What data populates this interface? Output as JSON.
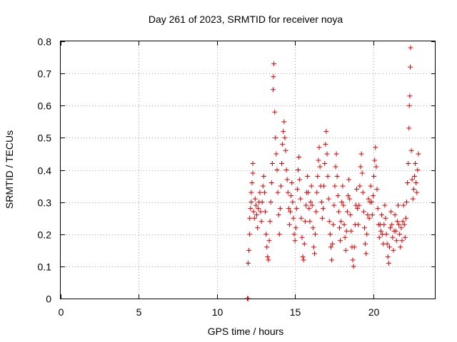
{
  "chart_data": {
    "type": "scatter",
    "title": "Day 261 of 2023, SRMTID for receiver noya",
    "xlabel": "GPS time / hours",
    "ylabel": "SRMTID / TECUs",
    "xlim": [
      0,
      24
    ],
    "ylim": [
      0,
      0.8
    ],
    "xticks": [
      0,
      5,
      10,
      15,
      20
    ],
    "yticks": [
      0,
      0.1,
      0.2,
      0.3,
      0.4,
      0.5,
      0.6,
      0.7,
      0.8
    ],
    "xtick_labels": [
      "0",
      "5",
      "10",
      "15",
      "20"
    ],
    "ytick_labels": [
      "0",
      "0.1",
      "0.2",
      "0.3",
      "0.4",
      "0.5",
      "0.6",
      "0.7",
      "0.8"
    ],
    "grid": true,
    "marker": "+",
    "color": "#e00000",
    "series": [
      {
        "name": "SRMTID",
        "points": [
          [
            11.95,
            0.0
          ],
          [
            12.0,
            0.0
          ],
          [
            12.0,
            0.11
          ],
          [
            12.05,
            0.15
          ],
          [
            12.1,
            0.2
          ],
          [
            12.1,
            0.25
          ],
          [
            12.15,
            0.28
          ],
          [
            12.2,
            0.3
          ],
          [
            12.2,
            0.33
          ],
          [
            12.25,
            0.36
          ],
          [
            12.3,
            0.39
          ],
          [
            12.3,
            0.42
          ],
          [
            12.35,
            0.27
          ],
          [
            12.4,
            0.25
          ],
          [
            12.45,
            0.31
          ],
          [
            12.5,
            0.29
          ],
          [
            12.55,
            0.26
          ],
          [
            12.6,
            0.22
          ],
          [
            12.65,
            0.28
          ],
          [
            12.7,
            0.3
          ],
          [
            12.75,
            0.33
          ],
          [
            12.8,
            0.27
          ],
          [
            12.85,
            0.24
          ],
          [
            12.9,
            0.3
          ],
          [
            12.95,
            0.35
          ],
          [
            13.0,
            0.38
          ],
          [
            13.05,
            0.33
          ],
          [
            13.1,
            0.27
          ],
          [
            13.15,
            0.2
          ],
          [
            13.2,
            0.16
          ],
          [
            13.25,
            0.13
          ],
          [
            13.3,
            0.12
          ],
          [
            13.35,
            0.18
          ],
          [
            13.4,
            0.24
          ],
          [
            13.45,
            0.3
          ],
          [
            13.5,
            0.36
          ],
          [
            13.55,
            0.42
          ],
          [
            13.6,
            0.65
          ],
          [
            13.62,
            0.69
          ],
          [
            13.65,
            0.73
          ],
          [
            13.7,
            0.58
          ],
          [
            13.75,
            0.5
          ],
          [
            13.8,
            0.45
          ],
          [
            13.85,
            0.4
          ],
          [
            13.9,
            0.33
          ],
          [
            13.95,
            0.26
          ],
          [
            14.0,
            0.2
          ],
          [
            14.05,
            0.28
          ],
          [
            14.1,
            0.35
          ],
          [
            14.15,
            0.42
          ],
          [
            14.2,
            0.48
          ],
          [
            14.25,
            0.52
          ],
          [
            14.3,
            0.55
          ],
          [
            14.35,
            0.5
          ],
          [
            14.4,
            0.46
          ],
          [
            14.45,
            0.4
          ],
          [
            14.5,
            0.37
          ],
          [
            14.55,
            0.33
          ],
          [
            14.6,
            0.28
          ],
          [
            14.65,
            0.23
          ],
          [
            14.7,
            0.27
          ],
          [
            14.75,
            0.32
          ],
          [
            14.8,
            0.36
          ],
          [
            14.85,
            0.3
          ],
          [
            14.9,
            0.25
          ],
          [
            14.95,
            0.2
          ],
          [
            15.0,
            0.18
          ],
          [
            15.05,
            0.22
          ],
          [
            15.1,
            0.28
          ],
          [
            15.15,
            0.34
          ],
          [
            15.2,
            0.4
          ],
          [
            15.25,
            0.44
          ],
          [
            15.3,
            0.37
          ],
          [
            15.35,
            0.31
          ],
          [
            15.4,
            0.25
          ],
          [
            15.45,
            0.19
          ],
          [
            15.5,
            0.13
          ],
          [
            15.55,
            0.12
          ],
          [
            15.6,
            0.17
          ],
          [
            15.65,
            0.24
          ],
          [
            15.7,
            0.29
          ],
          [
            15.75,
            0.33
          ],
          [
            15.8,
            0.38
          ],
          [
            15.85,
            0.33
          ],
          [
            15.9,
            0.28
          ],
          [
            15.95,
            0.24
          ],
          [
            16.0,
            0.3
          ],
          [
            16.05,
            0.35
          ],
          [
            16.1,
            0.29
          ],
          [
            16.15,
            0.22
          ],
          [
            16.2,
            0.16
          ],
          [
            16.25,
            0.14
          ],
          [
            16.3,
            0.2
          ],
          [
            16.35,
            0.27
          ],
          [
            16.4,
            0.33
          ],
          [
            16.45,
            0.38
          ],
          [
            16.5,
            0.43
          ],
          [
            16.55,
            0.47
          ],
          [
            16.6,
            0.41
          ],
          [
            16.65,
            0.35
          ],
          [
            16.7,
            0.3
          ],
          [
            16.75,
            0.25
          ],
          [
            16.8,
            0.28
          ],
          [
            16.85,
            0.35
          ],
          [
            16.9,
            0.42
          ],
          [
            16.95,
            0.48
          ],
          [
            17.0,
            0.52
          ],
          [
            17.05,
            0.45
          ],
          [
            17.1,
            0.38
          ],
          [
            17.15,
            0.31
          ],
          [
            17.2,
            0.24
          ],
          [
            17.25,
            0.2
          ],
          [
            17.3,
            0.16
          ],
          [
            17.35,
            0.12
          ],
          [
            17.4,
            0.17
          ],
          [
            17.45,
            0.23
          ],
          [
            17.5,
            0.29
          ],
          [
            17.55,
            0.35
          ],
          [
            17.6,
            0.41
          ],
          [
            17.65,
            0.45
          ],
          [
            17.7,
            0.38
          ],
          [
            17.75,
            0.32
          ],
          [
            17.8,
            0.27
          ],
          [
            17.85,
            0.22
          ],
          [
            17.9,
            0.18
          ],
          [
            17.95,
            0.24
          ],
          [
            18.0,
            0.3
          ],
          [
            18.05,
            0.35
          ],
          [
            18.1,
            0.29
          ],
          [
            18.15,
            0.23
          ],
          [
            18.2,
            0.19
          ],
          [
            18.25,
            0.15
          ],
          [
            18.3,
            0.21
          ],
          [
            18.35,
            0.27
          ],
          [
            18.4,
            0.32
          ],
          [
            18.45,
            0.37
          ],
          [
            18.5,
            0.31
          ],
          [
            18.55,
            0.26
          ],
          [
            18.6,
            0.21
          ],
          [
            18.65,
            0.16
          ],
          [
            18.7,
            0.12
          ],
          [
            18.75,
            0.1
          ],
          [
            18.8,
            0.16
          ],
          [
            18.85,
            0.23
          ],
          [
            18.9,
            0.29
          ],
          [
            18.95,
            0.34
          ],
          [
            19.0,
            0.28
          ],
          [
            19.05,
            0.23
          ],
          [
            19.1,
            0.29
          ],
          [
            19.15,
            0.35
          ],
          [
            19.2,
            0.41
          ],
          [
            19.25,
            0.45
          ],
          [
            19.3,
            0.39
          ],
          [
            19.35,
            0.33
          ],
          [
            19.4,
            0.27
          ],
          [
            19.45,
            0.22
          ],
          [
            19.5,
            0.17
          ],
          [
            19.55,
            0.14
          ],
          [
            19.6,
            0.2
          ],
          [
            19.65,
            0.26
          ],
          [
            19.7,
            0.31
          ],
          [
            19.75,
            0.25
          ],
          [
            19.8,
            0.3
          ],
          [
            19.85,
            0.35
          ],
          [
            19.9,
            0.3
          ],
          [
            19.95,
            0.26
          ],
          [
            20.0,
            0.32
          ],
          [
            20.05,
            0.38
          ],
          [
            20.1,
            0.43
          ],
          [
            20.15,
            0.47
          ],
          [
            20.2,
            0.41
          ],
          [
            20.25,
            0.34
          ],
          [
            20.3,
            0.28
          ],
          [
            20.35,
            0.23
          ],
          [
            20.4,
            0.19
          ],
          [
            20.45,
            0.23
          ],
          [
            20.5,
            0.21
          ],
          [
            20.55,
            0.26
          ],
          [
            20.6,
            0.2
          ],
          [
            20.65,
            0.17
          ],
          [
            20.7,
            0.23
          ],
          [
            20.75,
            0.29
          ],
          [
            20.8,
            0.25
          ],
          [
            20.85,
            0.2
          ],
          [
            20.9,
            0.17
          ],
          [
            20.95,
            0.13
          ],
          [
            21.0,
            0.11
          ],
          [
            21.05,
            0.16
          ],
          [
            21.1,
            0.22
          ],
          [
            21.15,
            0.27
          ],
          [
            21.2,
            0.23
          ],
          [
            21.25,
            0.19
          ],
          [
            21.3,
            0.15
          ],
          [
            21.35,
            0.21
          ],
          [
            21.4,
            0.26
          ],
          [
            21.45,
            0.21
          ],
          [
            21.5,
            0.18
          ],
          [
            21.55,
            0.24
          ],
          [
            21.6,
            0.29
          ],
          [
            21.65,
            0.23
          ],
          [
            21.7,
            0.2
          ],
          [
            21.75,
            0.16
          ],
          [
            21.8,
            0.22
          ],
          [
            21.85,
            0.18
          ],
          [
            21.9,
            0.24
          ],
          [
            21.95,
            0.29
          ],
          [
            22.0,
            0.23
          ],
          [
            22.05,
            0.19
          ],
          [
            22.1,
            0.25
          ],
          [
            22.15,
            0.3
          ],
          [
            22.2,
            0.36
          ],
          [
            22.25,
            0.42
          ],
          [
            22.3,
            0.53
          ],
          [
            22.32,
            0.6
          ],
          [
            22.35,
            0.63
          ],
          [
            22.38,
            0.72
          ],
          [
            22.4,
            0.78
          ],
          [
            22.45,
            0.46
          ],
          [
            22.5,
            0.37
          ],
          [
            22.55,
            0.31
          ],
          [
            22.6,
            0.34
          ],
          [
            22.65,
            0.38
          ],
          [
            22.7,
            0.42
          ],
          [
            22.75,
            0.36
          ],
          [
            22.8,
            0.33
          ],
          [
            22.85,
            0.4
          ],
          [
            22.9,
            0.45
          ]
        ]
      }
    ]
  }
}
